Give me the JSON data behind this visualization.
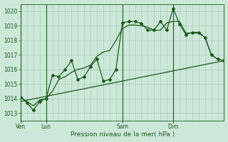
{
  "title": "Pression niveau de la mer( hPa )",
  "bg_color": "#cce8d8",
  "grid_color": "#a8c8b8",
  "line_color": "#1a5c1a",
  "ylim": [
    1012.5,
    1020.5
  ],
  "yticks": [
    1013,
    1014,
    1015,
    1016,
    1017,
    1018,
    1019,
    1020
  ],
  "day_labels": [
    "Ven",
    "Lun",
    "Sam",
    "Dim"
  ],
  "day_positions": [
    0,
    24,
    96,
    144
  ],
  "xlim": [
    0,
    192
  ],
  "vline_positions": [
    0,
    24,
    96,
    144
  ],
  "series1_x": [
    0,
    6,
    12,
    18,
    24,
    30,
    36,
    42,
    48,
    54,
    60,
    66,
    72,
    78,
    84,
    90,
    96,
    102,
    108,
    114,
    120,
    126,
    132,
    138,
    144,
    150,
    156,
    162,
    168,
    174,
    180,
    186,
    192
  ],
  "series1_y": [
    1014.1,
    1013.7,
    1013.2,
    1013.8,
    1014.0,
    1015.6,
    1015.5,
    1016.0,
    1016.6,
    1015.3,
    1015.5,
    1016.2,
    1016.7,
    1015.2,
    1015.3,
    1016.0,
    1019.2,
    1019.3,
    1019.3,
    1019.15,
    1018.7,
    1018.7,
    1019.3,
    1018.7,
    1020.2,
    1019.1,
    1018.4,
    1018.55,
    1018.55,
    1018.2,
    1017.0,
    1016.7,
    1016.6
  ],
  "series2_x": [
    0,
    6,
    12,
    18,
    24,
    30,
    36,
    42,
    48,
    54,
    60,
    66,
    72,
    78,
    84,
    90,
    96,
    102,
    108,
    114,
    120,
    126,
    132,
    138,
    144,
    150,
    156,
    162,
    168,
    174,
    180,
    186,
    192
  ],
  "series2_y": [
    1014.1,
    1013.8,
    1013.5,
    1013.9,
    1014.0,
    1014.5,
    1015.3,
    1015.5,
    1015.8,
    1016.0,
    1016.1,
    1016.3,
    1016.9,
    1017.2,
    1017.3,
    1018.0,
    1018.8,
    1019.05,
    1019.05,
    1019.0,
    1018.9,
    1018.7,
    1018.7,
    1019.2,
    1019.3,
    1019.3,
    1018.5,
    1018.5,
    1018.5,
    1018.2,
    1017.0,
    1016.7,
    1016.6
  ],
  "trend_x": [
    0,
    192
  ],
  "trend_y": [
    1013.8,
    1016.6
  ]
}
